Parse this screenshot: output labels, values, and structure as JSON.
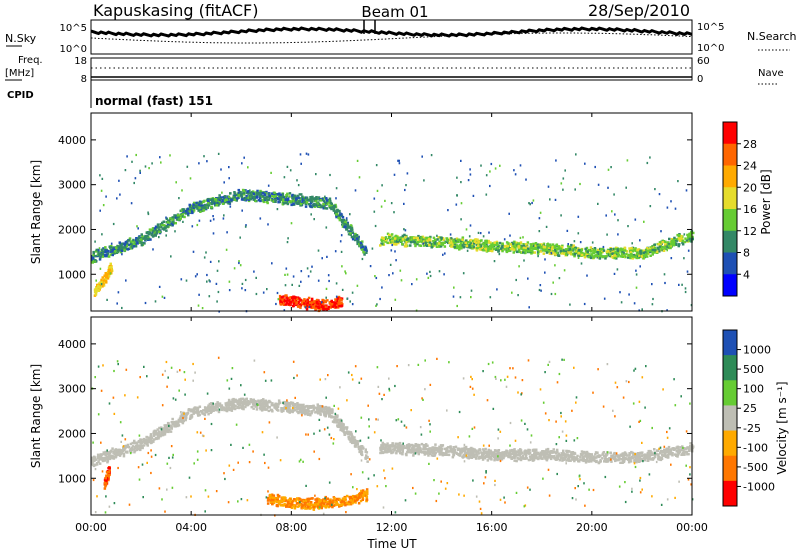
{
  "header": {
    "station": "Kapuskasing (fitACF)",
    "beam": "Beam 01",
    "date": "28/Sep/2010"
  },
  "status_panel": {
    "nsky_label": "N.Sky",
    "nsky_ticks": [
      "10^5",
      "10^0"
    ],
    "nsearch_label": "N.Search",
    "nsearch_ticks": [
      "10^5",
      "10^0"
    ],
    "freq_label": "Freq.",
    "freq_unit": "[MHz]",
    "freq_ticks": [
      "18",
      "8"
    ],
    "nave_label": "Nave",
    "nave_ticks": [
      "60",
      "0"
    ],
    "cpid_label": "CPID",
    "cpid_text": "normal (fast) 151"
  },
  "x_axis": {
    "title": "Time UT",
    "ticks": [
      "00:00",
      "04:00",
      "08:00",
      "12:00",
      "16:00",
      "20:00",
      "00:00"
    ]
  },
  "y_axis": {
    "title": "Slant Range [km]",
    "ticks": [
      "4000",
      "3000",
      "2000",
      "1000"
    ]
  },
  "colorbars": {
    "power": {
      "label": "Power [dB]",
      "ticks": [
        "28",
        "24",
        "20",
        "16",
        "12",
        "8",
        "4"
      ],
      "colors": [
        "#ff0000",
        "#ff6600",
        "#ffaa00",
        "#e6dc2c",
        "#66cc33",
        "#338866",
        "#1e50b4",
        "#0000ff"
      ]
    },
    "velocity": {
      "label": "Velocity [m s⁻¹]",
      "ticks": [
        "1000",
        "500",
        "100",
        "25",
        "-25",
        "-100",
        "-500",
        "-1000"
      ],
      "colors": [
        "#1e50b4",
        "#2e8b57",
        "#66cc33",
        "#bebeb4",
        "#ffaa00",
        "#ff7700",
        "#ff0000"
      ]
    }
  },
  "chart_data": [
    {
      "type": "heatmap",
      "title": "Power",
      "xlabel": "Time UT",
      "ylabel": "Slant Range [km]",
      "xlim": [
        0,
        24
      ],
      "ylim": [
        180,
        4600
      ],
      "colorbar": "Power [dB]",
      "features": [
        {
          "name": "upper band",
          "x": [
            0.0,
            2.0,
            4.0,
            6.0,
            8.0,
            9.5,
            11.0
          ],
          "y": [
            1400,
            1800,
            2500,
            2800,
            2700,
            2600,
            1500
          ],
          "power_db": 10
        },
        {
          "name": "lower band",
          "x": [
            11.5,
            14.0,
            16.0,
            18.0,
            20.0,
            22.0,
            24.0
          ],
          "y": [
            1800,
            1750,
            1650,
            1600,
            1500,
            1500,
            1900
          ],
          "power_db": 14
        },
        {
          "name": "near-range enhancement",
          "x": [
            7.5,
            8.5,
            9.0,
            9.5,
            10.0
          ],
          "y": [
            450,
            380,
            330,
            350,
            420
          ],
          "power_db": 28
        },
        {
          "name": "early near-range patch",
          "x": [
            0.1,
            0.5,
            0.8
          ],
          "y": [
            650,
            900,
            1200
          ],
          "power_db": 20
        }
      ]
    },
    {
      "type": "heatmap",
      "title": "Velocity",
      "xlabel": "Time UT",
      "ylabel": "Slant Range [km]",
      "xlim": [
        0,
        24
      ],
      "ylim": [
        180,
        4600
      ],
      "colorbar": "Velocity [m s-1]",
      "features": [
        {
          "name": "ground scatter band",
          "x": [
            0.0,
            2.0,
            4.0,
            6.0,
            8.0,
            9.5,
            11.0
          ],
          "y": [
            1400,
            1800,
            2500,
            2700,
            2600,
            2500,
            1500
          ],
          "velocity": 0
        },
        {
          "name": "ground scatter band 2",
          "x": [
            11.5,
            14.0,
            16.0,
            18.0,
            20.0,
            22.0,
            24.0
          ],
          "y": [
            1700,
            1650,
            1550,
            1550,
            1500,
            1500,
            1700
          ],
          "velocity": 0
        },
        {
          "name": "near-range receding",
          "x": [
            7.0,
            8.5,
            10.0,
            11.0
          ],
          "y": [
            550,
            450,
            500,
            650
          ],
          "velocity": -100
        },
        {
          "name": "early approaching patch",
          "x": [
            0.5,
            0.7
          ],
          "y": [
            900,
            1200
          ],
          "velocity": -500
        }
      ]
    }
  ]
}
